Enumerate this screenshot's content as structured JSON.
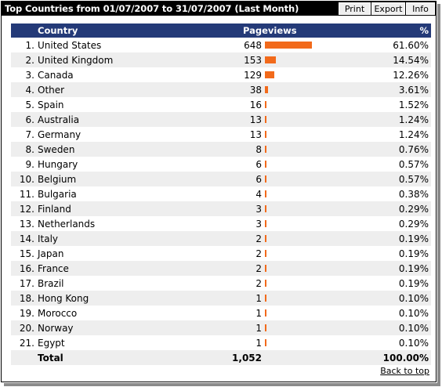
{
  "title": "Top Countries from 01/07/2007 to 31/07/2007 (Last Month)",
  "toolbar": {
    "print": "Print",
    "export": "Export",
    "info": "Info"
  },
  "columns": {
    "country": "Country",
    "pageviews": "Pageviews",
    "percent": "%"
  },
  "colors": {
    "bar": "#f26a1b",
    "header": "#243a78"
  },
  "rows": [
    {
      "num": "1.",
      "country": "United States",
      "pageviews": "648",
      "share": 0.616,
      "percent": "61.60%"
    },
    {
      "num": "2.",
      "country": "United Kingdom",
      "pageviews": "153",
      "share": 0.1454,
      "percent": "14.54%"
    },
    {
      "num": "3.",
      "country": "Canada",
      "pageviews": "129",
      "share": 0.1226,
      "percent": "12.26%"
    },
    {
      "num": "4.",
      "country": "Other",
      "pageviews": "38",
      "share": 0.0361,
      "percent": "3.61%"
    },
    {
      "num": "5.",
      "country": "Spain",
      "pageviews": "16",
      "share": 0.0152,
      "percent": "1.52%"
    },
    {
      "num": "6.",
      "country": "Australia",
      "pageviews": "13",
      "share": 0.0124,
      "percent": "1.24%"
    },
    {
      "num": "7.",
      "country": "Germany",
      "pageviews": "13",
      "share": 0.0124,
      "percent": "1.24%"
    },
    {
      "num": "8.",
      "country": "Sweden",
      "pageviews": "8",
      "share": 0.0076,
      "percent": "0.76%"
    },
    {
      "num": "9.",
      "country": "Hungary",
      "pageviews": "6",
      "share": 0.0057,
      "percent": "0.57%"
    },
    {
      "num": "10.",
      "country": "Belgium",
      "pageviews": "6",
      "share": 0.0057,
      "percent": "0.57%"
    },
    {
      "num": "11.",
      "country": "Bulgaria",
      "pageviews": "4",
      "share": 0.0038,
      "percent": "0.38%"
    },
    {
      "num": "12.",
      "country": "Finland",
      "pageviews": "3",
      "share": 0.0029,
      "percent": "0.29%"
    },
    {
      "num": "13.",
      "country": "Netherlands",
      "pageviews": "3",
      "share": 0.0029,
      "percent": "0.29%"
    },
    {
      "num": "14.",
      "country": "Italy",
      "pageviews": "2",
      "share": 0.0019,
      "percent": "0.19%"
    },
    {
      "num": "15.",
      "country": "Japan",
      "pageviews": "2",
      "share": 0.0019,
      "percent": "0.19%"
    },
    {
      "num": "16.",
      "country": "France",
      "pageviews": "2",
      "share": 0.0019,
      "percent": "0.19%"
    },
    {
      "num": "17.",
      "country": "Brazil",
      "pageviews": "2",
      "share": 0.0019,
      "percent": "0.19%"
    },
    {
      "num": "18.",
      "country": "Hong Kong",
      "pageviews": "1",
      "share": 0.001,
      "percent": "0.10%"
    },
    {
      "num": "19.",
      "country": "Morocco",
      "pageviews": "1",
      "share": 0.001,
      "percent": "0.10%"
    },
    {
      "num": "20.",
      "country": "Norway",
      "pageviews": "1",
      "share": 0.001,
      "percent": "0.10%"
    },
    {
      "num": "21.",
      "country": "Egypt",
      "pageviews": "1",
      "share": 0.001,
      "percent": "0.10%"
    }
  ],
  "total": {
    "label": "Total",
    "pageviews": "1,052",
    "percent": "100.00%"
  },
  "back_to_top": "Back to top"
}
